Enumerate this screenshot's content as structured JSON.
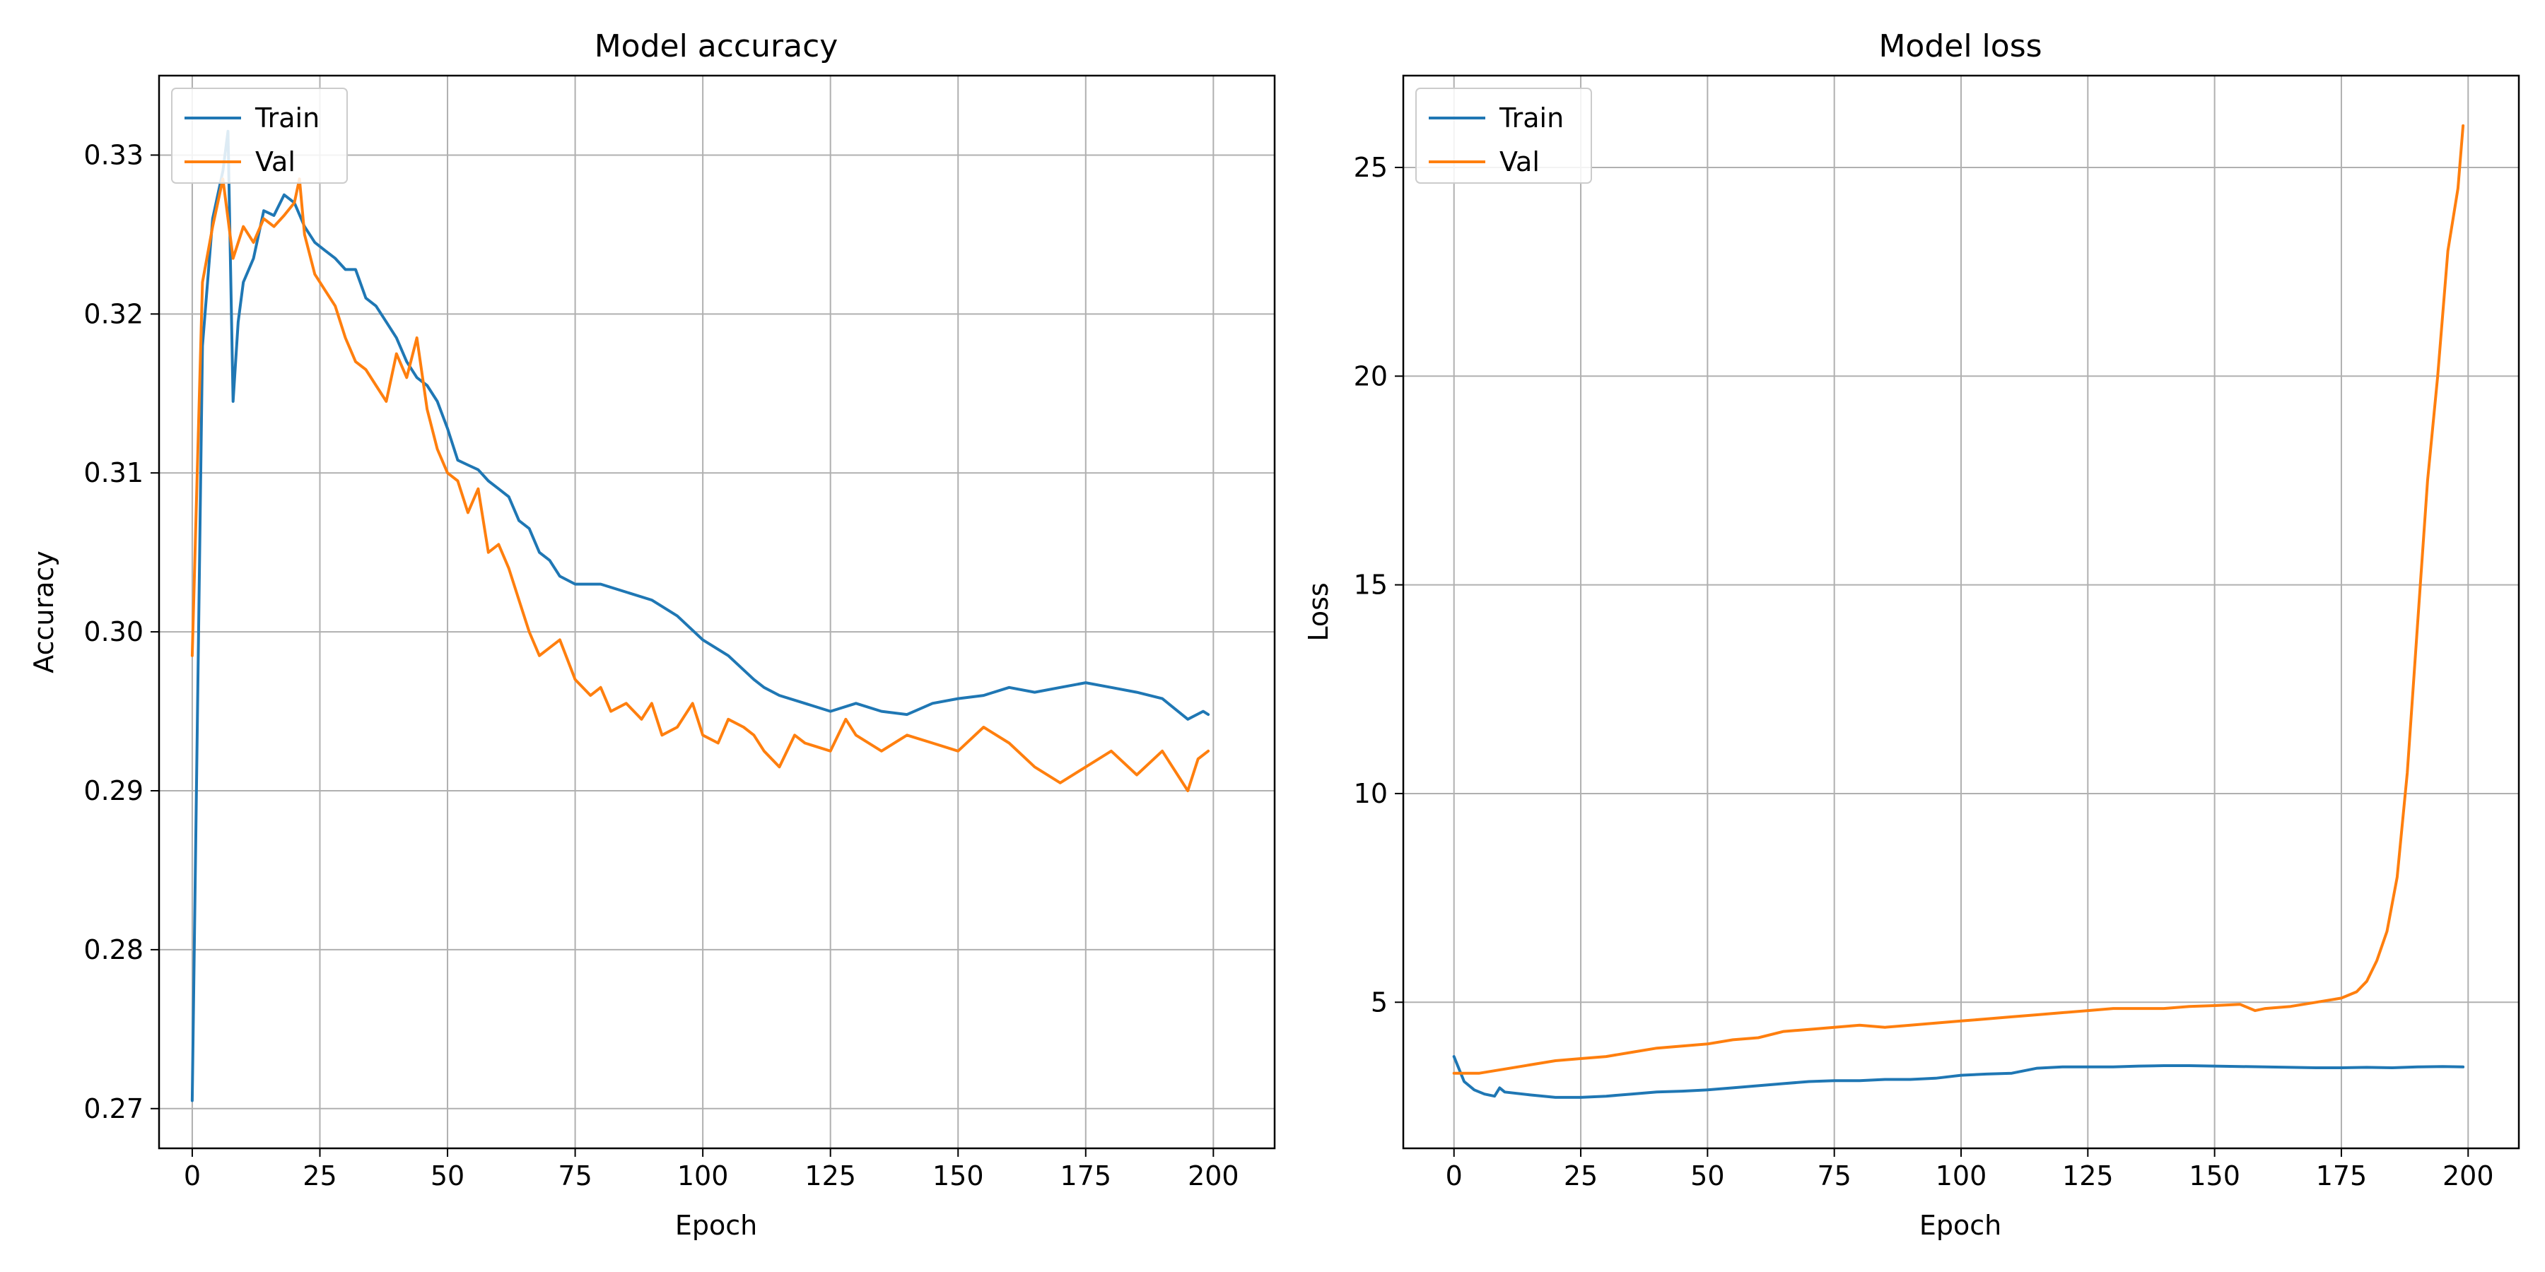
{
  "chart_data": [
    {
      "type": "line",
      "title": "Model accuracy",
      "xlabel": "Epoch",
      "ylabel": "Accuracy",
      "xlim": [
        -6.5,
        212
      ],
      "ylim": [
        0.2675,
        0.335
      ],
      "xticks": [
        0,
        25,
        50,
        75,
        100,
        125,
        150,
        175,
        200
      ],
      "yticks": [
        0.27,
        0.28,
        0.29,
        0.3,
        0.31,
        0.32,
        0.33
      ],
      "ytick_labels": [
        "0.27",
        "0.28",
        "0.29",
        "0.30",
        "0.31",
        "0.32",
        "0.33"
      ],
      "grid": true,
      "legend_position": "top-left",
      "series": [
        {
          "name": "Train",
          "color": "#1f77b4",
          "points": [
            [
              0,
              0.2705
            ],
            [
              2,
              0.318
            ],
            [
              4,
              0.326
            ],
            [
              6,
              0.329
            ],
            [
              7,
              0.3315
            ],
            [
              8,
              0.3145
            ],
            [
              9,
              0.3195
            ],
            [
              10,
              0.322
            ],
            [
              12,
              0.3235
            ],
            [
              14,
              0.3265
            ],
            [
              16,
              0.3262
            ],
            [
              18,
              0.3275
            ],
            [
              20,
              0.327
            ],
            [
              22,
              0.3255
            ],
            [
              24,
              0.3245
            ],
            [
              26,
              0.324
            ],
            [
              28,
              0.3235
            ],
            [
              30,
              0.3228
            ],
            [
              32,
              0.3228
            ],
            [
              34,
              0.321
            ],
            [
              36,
              0.3205
            ],
            [
              38,
              0.3195
            ],
            [
              40,
              0.3185
            ],
            [
              42,
              0.317
            ],
            [
              44,
              0.316
            ],
            [
              46,
              0.3155
            ],
            [
              48,
              0.3145
            ],
            [
              50,
              0.3128
            ],
            [
              52,
              0.3108
            ],
            [
              54,
              0.3105
            ],
            [
              56,
              0.3102
            ],
            [
              58,
              0.3095
            ],
            [
              60,
              0.309
            ],
            [
              62,
              0.3085
            ],
            [
              64,
              0.307
            ],
            [
              66,
              0.3065
            ],
            [
              68,
              0.305
            ],
            [
              70,
              0.3045
            ],
            [
              72,
              0.3035
            ],
            [
              75,
              0.303
            ],
            [
              80,
              0.303
            ],
            [
              85,
              0.3025
            ],
            [
              90,
              0.302
            ],
            [
              95,
              0.301
            ],
            [
              100,
              0.2995
            ],
            [
              105,
              0.2985
            ],
            [
              110,
              0.297
            ],
            [
              112,
              0.2965
            ],
            [
              115,
              0.296
            ],
            [
              120,
              0.2955
            ],
            [
              125,
              0.295
            ],
            [
              130,
              0.2955
            ],
            [
              135,
              0.295
            ],
            [
              140,
              0.2948
            ],
            [
              145,
              0.2955
            ],
            [
              150,
              0.2958
            ],
            [
              155,
              0.296
            ],
            [
              160,
              0.2965
            ],
            [
              165,
              0.2962
            ],
            [
              170,
              0.2965
            ],
            [
              175,
              0.2968
            ],
            [
              180,
              0.2965
            ],
            [
              185,
              0.2962
            ],
            [
              190,
              0.2958
            ],
            [
              195,
              0.2945
            ],
            [
              198,
              0.295
            ],
            [
              199,
              0.2948
            ]
          ]
        },
        {
          "name": "Val",
          "color": "#ff7f0e",
          "points": [
            [
              0,
              0.2985
            ],
            [
              2,
              0.322
            ],
            [
              4,
              0.3255
            ],
            [
              6,
              0.3285
            ],
            [
              8,
              0.3235
            ],
            [
              10,
              0.3255
            ],
            [
              12,
              0.3245
            ],
            [
              14,
              0.326
            ],
            [
              16,
              0.3255
            ],
            [
              18,
              0.3262
            ],
            [
              20,
              0.327
            ],
            [
              21,
              0.3285
            ],
            [
              22,
              0.325
            ],
            [
              24,
              0.3225
            ],
            [
              26,
              0.3215
            ],
            [
              28,
              0.3205
            ],
            [
              30,
              0.3185
            ],
            [
              32,
              0.317
            ],
            [
              34,
              0.3165
            ],
            [
              36,
              0.3155
            ],
            [
              38,
              0.3145
            ],
            [
              40,
              0.3175
            ],
            [
              42,
              0.316
            ],
            [
              44,
              0.3185
            ],
            [
              46,
              0.314
            ],
            [
              48,
              0.3115
            ],
            [
              50,
              0.31
            ],
            [
              52,
              0.3095
            ],
            [
              54,
              0.3075
            ],
            [
              56,
              0.309
            ],
            [
              58,
              0.305
            ],
            [
              60,
              0.3055
            ],
            [
              62,
              0.304
            ],
            [
              64,
              0.302
            ],
            [
              66,
              0.3
            ],
            [
              68,
              0.2985
            ],
            [
              70,
              0.299
            ],
            [
              72,
              0.2995
            ],
            [
              75,
              0.297
            ],
            [
              78,
              0.296
            ],
            [
              80,
              0.2965
            ],
            [
              82,
              0.295
            ],
            [
              85,
              0.2955
            ],
            [
              88,
              0.2945
            ],
            [
              90,
              0.2955
            ],
            [
              92,
              0.2935
            ],
            [
              95,
              0.294
            ],
            [
              98,
              0.2955
            ],
            [
              100,
              0.2935
            ],
            [
              103,
              0.293
            ],
            [
              105,
              0.2945
            ],
            [
              108,
              0.294
            ],
            [
              110,
              0.2935
            ],
            [
              112,
              0.2925
            ],
            [
              115,
              0.2915
            ],
            [
              118,
              0.2935
            ],
            [
              120,
              0.293
            ],
            [
              125,
              0.2925
            ],
            [
              128,
              0.2945
            ],
            [
              130,
              0.2935
            ],
            [
              135,
              0.2925
            ],
            [
              140,
              0.2935
            ],
            [
              145,
              0.293
            ],
            [
              150,
              0.2925
            ],
            [
              155,
              0.294
            ],
            [
              160,
              0.293
            ],
            [
              165,
              0.2915
            ],
            [
              170,
              0.2905
            ],
            [
              175,
              0.2915
            ],
            [
              180,
              0.2925
            ],
            [
              185,
              0.291
            ],
            [
              190,
              0.2925
            ],
            [
              195,
              0.29
            ],
            [
              197,
              0.292
            ],
            [
              199,
              0.2925
            ]
          ]
        }
      ]
    },
    {
      "type": "line",
      "title": "Model loss",
      "xlabel": "Epoch",
      "ylabel": "Loss",
      "xlim": [
        -10,
        210
      ],
      "ylim": [
        1.5,
        27.2
      ],
      "xticks": [
        0,
        25,
        50,
        75,
        100,
        125,
        150,
        175,
        200
      ],
      "yticks": [
        5,
        10,
        15,
        20,
        25
      ],
      "ytick_labels": [
        "5",
        "10",
        "15",
        "20",
        "25"
      ],
      "grid": true,
      "legend_position": "top-left",
      "series": [
        {
          "name": "Train",
          "color": "#1f77b4",
          "points": [
            [
              0,
              3.7
            ],
            [
              2,
              3.1
            ],
            [
              4,
              2.9
            ],
            [
              6,
              2.8
            ],
            [
              8,
              2.75
            ],
            [
              9,
              2.95
            ],
            [
              10,
              2.85
            ],
            [
              15,
              2.78
            ],
            [
              20,
              2.72
            ],
            [
              25,
              2.72
            ],
            [
              30,
              2.75
            ],
            [
              35,
              2.8
            ],
            [
              40,
              2.85
            ],
            [
              45,
              2.87
            ],
            [
              50,
              2.9
            ],
            [
              55,
              2.95
            ],
            [
              60,
              3.0
            ],
            [
              65,
              3.05
            ],
            [
              70,
              3.1
            ],
            [
              75,
              3.12
            ],
            [
              80,
              3.12
            ],
            [
              85,
              3.15
            ],
            [
              90,
              3.15
            ],
            [
              95,
              3.18
            ],
            [
              100,
              3.25
            ],
            [
              105,
              3.28
            ],
            [
              110,
              3.3
            ],
            [
              115,
              3.42
            ],
            [
              120,
              3.45
            ],
            [
              125,
              3.45
            ],
            [
              130,
              3.45
            ],
            [
              135,
              3.47
            ],
            [
              140,
              3.48
            ],
            [
              145,
              3.48
            ],
            [
              150,
              3.47
            ],
            [
              155,
              3.46
            ],
            [
              160,
              3.45
            ],
            [
              165,
              3.44
            ],
            [
              170,
              3.43
            ],
            [
              175,
              3.43
            ],
            [
              180,
              3.44
            ],
            [
              185,
              3.43
            ],
            [
              190,
              3.45
            ],
            [
              195,
              3.46
            ],
            [
              199,
              3.45
            ]
          ]
        },
        {
          "name": "Val",
          "color": "#ff7f0e",
          "points": [
            [
              0,
              3.3
            ],
            [
              5,
              3.3
            ],
            [
              10,
              3.4
            ],
            [
              15,
              3.5
            ],
            [
              20,
              3.6
            ],
            [
              25,
              3.65
            ],
            [
              30,
              3.7
            ],
            [
              35,
              3.8
            ],
            [
              40,
              3.9
            ],
            [
              45,
              3.95
            ],
            [
              50,
              4.0
            ],
            [
              55,
              4.1
            ],
            [
              60,
              4.15
            ],
            [
              65,
              4.3
            ],
            [
              70,
              4.35
            ],
            [
              75,
              4.4
            ],
            [
              80,
              4.45
            ],
            [
              85,
              4.4
            ],
            [
              90,
              4.45
            ],
            [
              95,
              4.5
            ],
            [
              100,
              4.55
            ],
            [
              105,
              4.6
            ],
            [
              110,
              4.65
            ],
            [
              115,
              4.7
            ],
            [
              120,
              4.75
            ],
            [
              125,
              4.8
            ],
            [
              130,
              4.85
            ],
            [
              135,
              4.85
            ],
            [
              140,
              4.85
            ],
            [
              145,
              4.9
            ],
            [
              150,
              4.92
            ],
            [
              155,
              4.95
            ],
            [
              158,
              4.8
            ],
            [
              160,
              4.85
            ],
            [
              165,
              4.9
            ],
            [
              170,
              5.0
            ],
            [
              175,
              5.1
            ],
            [
              178,
              5.25
            ],
            [
              180,
              5.5
            ],
            [
              182,
              6.0
            ],
            [
              184,
              6.7
            ],
            [
              186,
              8.0
            ],
            [
              188,
              10.5
            ],
            [
              190,
              14.0
            ],
            [
              192,
              17.5
            ],
            [
              194,
              20.0
            ],
            [
              196,
              23.0
            ],
            [
              198,
              24.5
            ],
            [
              199,
              26.0
            ]
          ]
        }
      ]
    }
  ]
}
